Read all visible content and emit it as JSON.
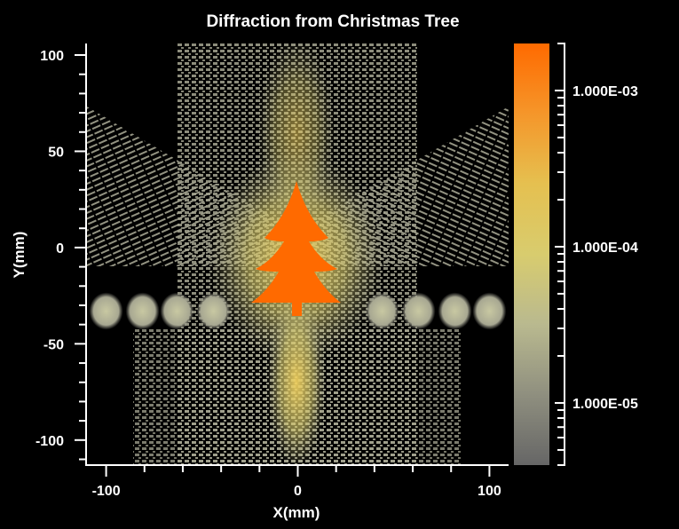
{
  "chart_data": {
    "type": "heatmap",
    "title": "Diffraction from Christmas Tree",
    "xlabel": "X(mm)",
    "ylabel": "Y(mm)",
    "xlim": [
      -110,
      110
    ],
    "ylim": [
      -113,
      106
    ],
    "x_ticks": [
      {
        "value": -100,
        "label": "-100"
      },
      {
        "value": 0,
        "label": "0"
      },
      {
        "value": 100,
        "label": "100"
      }
    ],
    "x_minor_step": 20,
    "y_ticks": [
      {
        "value": 100,
        "label": "100"
      },
      {
        "value": 50,
        "label": "50"
      },
      {
        "value": 0,
        "label": "0"
      },
      {
        "value": -50,
        "label": "-50"
      },
      {
        "value": -100,
        "label": "-100"
      }
    ],
    "y_minor_step": 10,
    "colorbar": {
      "scale": "log",
      "range": [
        4e-06,
        0.002
      ],
      "ticks": [
        {
          "value": 0.001,
          "label": "1.000E-03"
        },
        {
          "value": 0.0001,
          "label": "1.000E-04"
        },
        {
          "value": 1e-05,
          "label": "1.000E-05"
        }
      ],
      "colors": [
        "#666666",
        "#8f8f7f",
        "#b9b98f",
        "#d8cc6e",
        "#e5c050",
        "#f5962a",
        "#ff6a00"
      ]
    },
    "grid": false,
    "aperture_shape": "christmas-tree",
    "aperture_color": "#ff6a00",
    "side_lobes_x_mm": [
      -100,
      -81,
      -63,
      -44,
      44,
      63,
      82,
      100
    ],
    "side_lobes_y_mm": -33
  }
}
